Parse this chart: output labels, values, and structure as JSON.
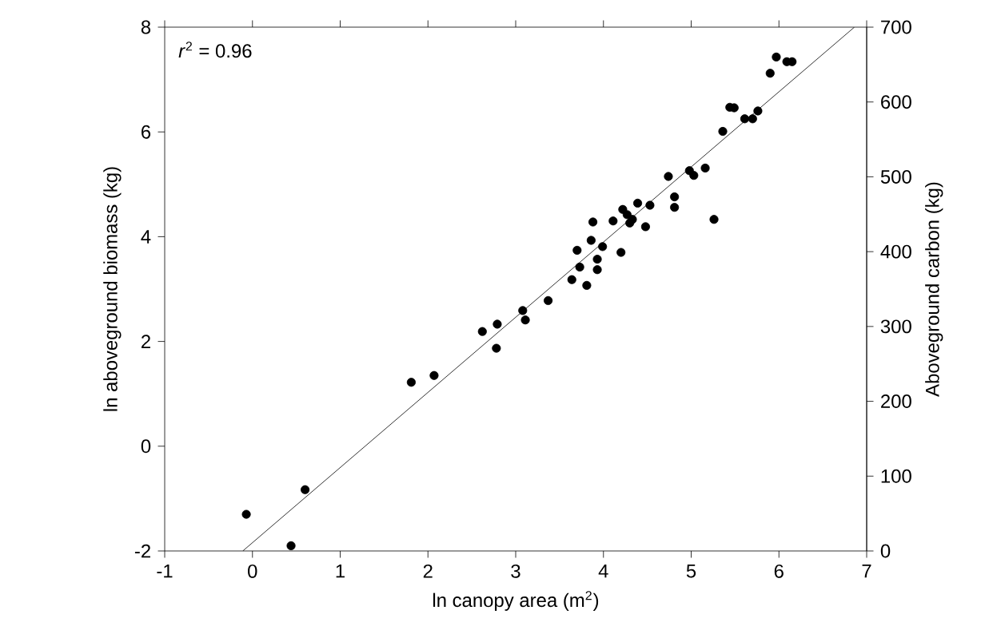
{
  "chart_data": {
    "type": "scatter",
    "xlabel": "ln canopy area (m$^{2}$)",
    "ylabel": "ln aboveground biomass (kg)",
    "y2label": "Aboveground carbon (kg)",
    "annotations": [
      "*r*$^{2}$ = 0.96"
    ],
    "xlim": [
      -1,
      7
    ],
    "xticks": [
      -1,
      0,
      1,
      2,
      3,
      4,
      5,
      6,
      7
    ],
    "ylim": [
      -2,
      8
    ],
    "yticks": [
      -2,
      0,
      2,
      4,
      6,
      8
    ],
    "y2lim": [
      0,
      700
    ],
    "y2ticks": [
      0,
      100,
      200,
      300,
      400,
      500,
      600,
      700
    ],
    "grid": false,
    "series": [
      {
        "marker": "circle",
        "color": "#000000",
        "x": [
          -0.07,
          0.44,
          0.6,
          1.81,
          2.07,
          2.62,
          2.79,
          2.78,
          3.08,
          3.11,
          3.37,
          3.64,
          3.7,
          3.73,
          3.81,
          3.86,
          3.88,
          3.93,
          3.93,
          3.99,
          4.11,
          4.2,
          4.22,
          4.27,
          4.3,
          4.33,
          4.39,
          4.48,
          4.53,
          4.74,
          4.81,
          4.81,
          4.98,
          5.03,
          5.16,
          5.26,
          5.36,
          5.44,
          5.49,
          5.61,
          5.7,
          5.76,
          5.9,
          5.97,
          6.09,
          6.15
        ],
        "values": [
          -1.3,
          -1.9,
          -0.83,
          1.22,
          1.35,
          2.19,
          2.33,
          1.87,
          2.59,
          2.41,
          2.78,
          3.18,
          3.74,
          3.42,
          3.07,
          3.93,
          4.28,
          3.57,
          3.37,
          3.81,
          4.3,
          3.7,
          4.52,
          4.42,
          4.26,
          4.33,
          4.64,
          4.19,
          4.6,
          5.15,
          4.76,
          4.56,
          5.26,
          5.17,
          5.31,
          4.33,
          6.01,
          6.47,
          6.46,
          6.25,
          6.25,
          6.4,
          7.12,
          7.43,
          7.34,
          7.34
        ]
      },
      {
        "type": "line",
        "marker": "none",
        "color": "#000000",
        "x": [
          -0.11,
          6.86
        ],
        "values": [
          -2,
          8
        ]
      }
    ]
  }
}
